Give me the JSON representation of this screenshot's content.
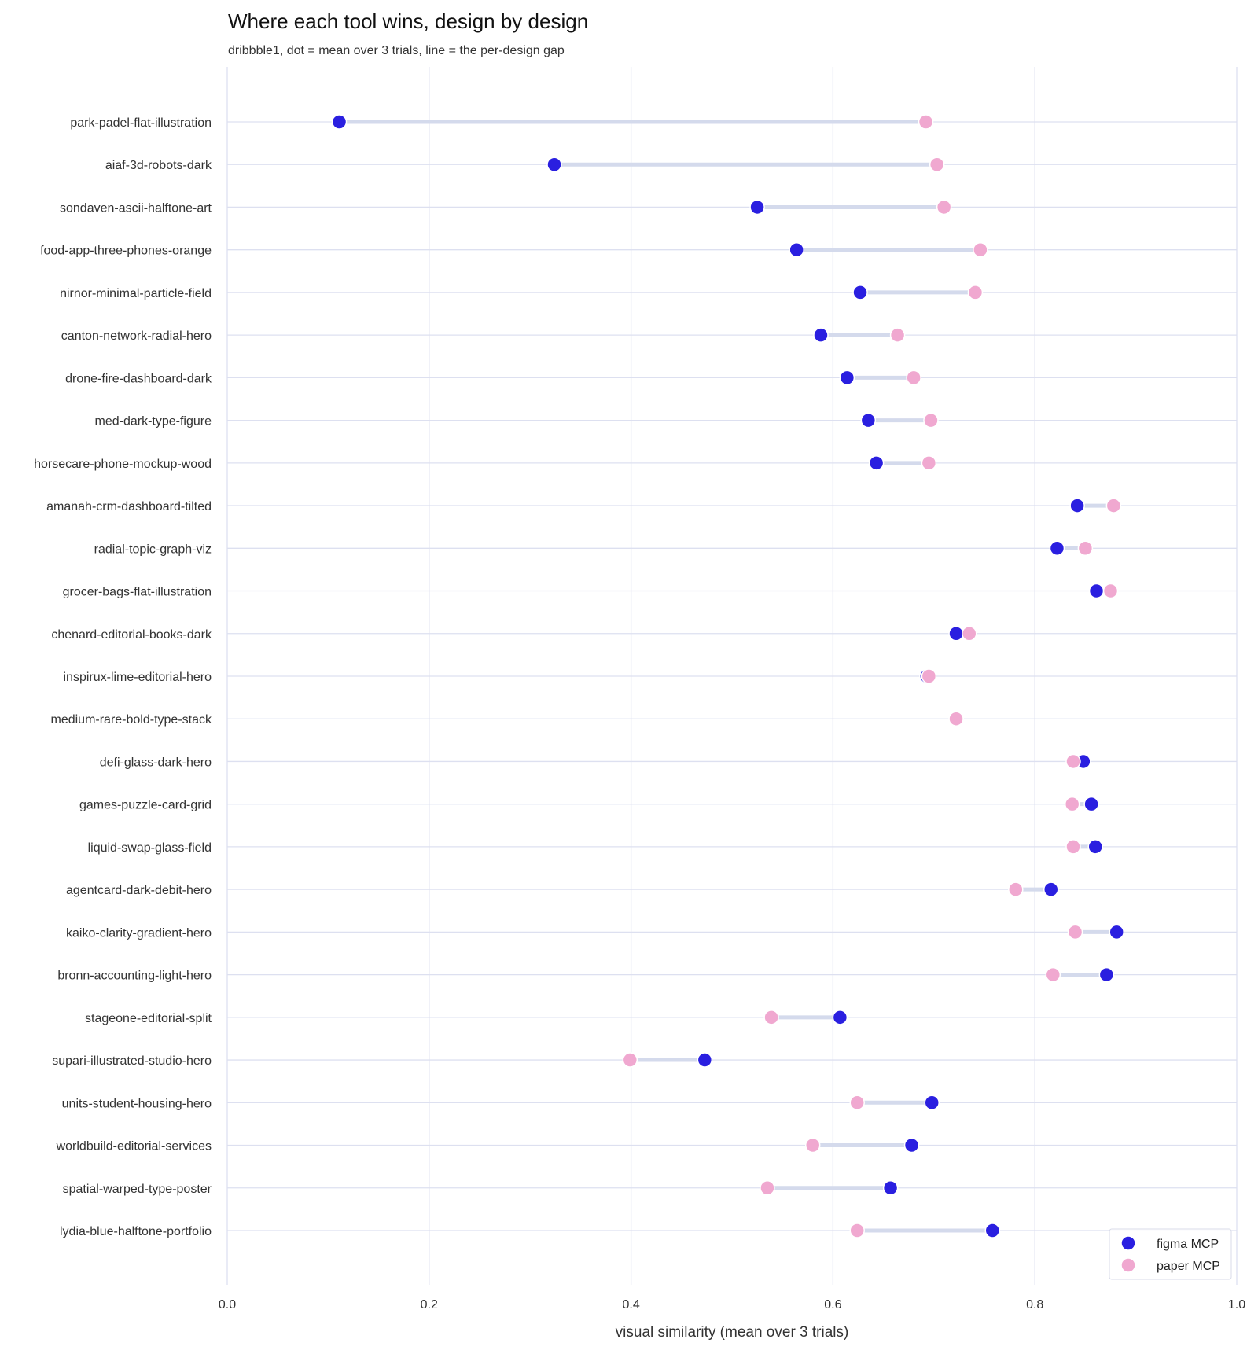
{
  "chart_data": {
    "type": "dumbbell",
    "title": "Where each tool wins, design by design",
    "subtitle": "dribbble1, dot = mean over 3 trials, line = the per-design gap",
    "xlabel": "visual similarity (mean over 3 trials)",
    "xlim": [
      0.0,
      1.0
    ],
    "xticks": [
      "0.0",
      "0.2",
      "0.4",
      "0.6",
      "0.8",
      "1.0"
    ],
    "grid": true,
    "legend_position": "bottom-right",
    "categories": [
      "park-padel-flat-illustration",
      "aiaf-3d-robots-dark",
      "sondaven-ascii-halftone-art",
      "food-app-three-phones-orange",
      "nirnor-minimal-particle-field",
      "canton-network-radial-hero",
      "drone-fire-dashboard-dark",
      "med-dark-type-figure",
      "horsecare-phone-mockup-wood",
      "amanah-crm-dashboard-tilted",
      "radial-topic-graph-viz",
      "grocer-bags-flat-illustration",
      "chenard-editorial-books-dark",
      "inspirux-lime-editorial-hero",
      "medium-rare-bold-type-stack",
      "defi-glass-dark-hero",
      "games-puzzle-card-grid",
      "liquid-swap-glass-field",
      "agentcard-dark-debit-hero",
      "kaiko-clarity-gradient-hero",
      "bronn-accounting-light-hero",
      "stageone-editorial-split",
      "supari-illustrated-studio-hero",
      "units-student-housing-hero",
      "worldbuild-editorial-services",
      "spatial-warped-type-poster",
      "lydia-blue-halftone-portfolio"
    ],
    "series": [
      {
        "name": "figma MCP",
        "color": "#2a1fe0",
        "values": [
          0.111,
          0.324,
          0.525,
          0.564,
          0.627,
          0.588,
          0.614,
          0.635,
          0.643,
          0.842,
          0.822,
          0.861,
          0.722,
          0.693,
          0.722,
          0.848,
          0.856,
          0.86,
          0.816,
          0.881,
          0.871,
          0.607,
          0.473,
          0.698,
          0.678,
          0.657,
          0.758
        ]
      },
      {
        "name": "paper MCP",
        "color": "#f0a8d0",
        "values": [
          0.692,
          0.703,
          0.71,
          0.746,
          0.741,
          0.664,
          0.68,
          0.697,
          0.695,
          0.878,
          0.85,
          0.875,
          0.735,
          0.695,
          0.722,
          0.838,
          0.837,
          0.838,
          0.781,
          0.84,
          0.818,
          0.539,
          0.399,
          0.624,
          0.58,
          0.535,
          0.624
        ]
      }
    ],
    "gap_line_color": "#d4daec"
  }
}
